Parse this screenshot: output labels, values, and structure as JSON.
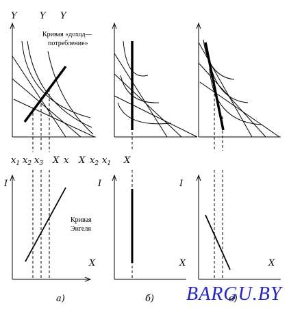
{
  "top_axis_labels": [
    "Y",
    "Y",
    "Y"
  ],
  "icc_label_line1": "Кривая «доход—",
  "icc_label_line2": "потребление»",
  "x_row": {
    "x1": "x",
    "x1_sub": "1",
    "x2": "x",
    "x2_sub": "2",
    "x3": "x",
    "x3_sub": "3",
    "X_mid": "X",
    "x_mid": "x",
    "X_b": "X",
    "x2b": "x",
    "x2b_sub": "2",
    "x1b": "x",
    "x1b_sub": "1",
    "X_c": "X"
  },
  "bottom_y_labels": [
    "I",
    "I",
    "I"
  ],
  "bottom_x_labels": [
    "X",
    "X",
    "X"
  ],
  "engel_label_line1": "Кривая",
  "engel_label_line2": "Энгеля",
  "panel_labels": [
    "а)",
    "б)",
    "в)"
  ],
  "watermark": "BARGU.BY",
  "colors": {
    "ink": "#000000",
    "watermark": "#2424c8"
  }
}
